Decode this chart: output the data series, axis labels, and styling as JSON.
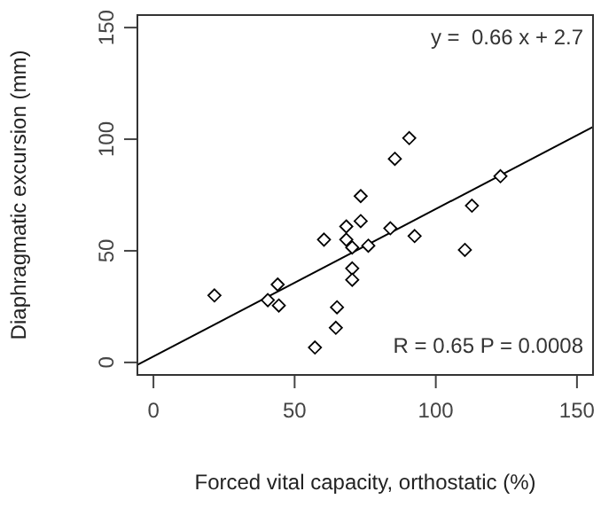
{
  "chart_data": {
    "type": "scatter",
    "xlabel": "Forced vital capacity, orthostatic (%)",
    "ylabel": "Diaphragmatic excursion (mm)",
    "xlim": [
      -6,
      156
    ],
    "ylim": [
      -6,
      156
    ],
    "xticks": [
      0,
      50,
      100,
      150
    ],
    "yticks": [
      0,
      50,
      100,
      150
    ],
    "grid": false,
    "legend": false,
    "series": [
      {
        "marker": "diamond",
        "color": "#000000",
        "x": [
          21.6,
          40.5,
          44.0,
          44.4,
          57.2,
          64.6,
          65.0,
          60.4,
          68.3,
          68.3,
          70.4,
          70.4,
          70.4,
          73.4,
          73.4,
          76.1,
          83.9,
          85.5,
          90.6,
          92.5,
          110.3,
          112.8,
          122.9
        ],
        "values": [
          30.0,
          27.9,
          34.9,
          25.5,
          6.7,
          15.5,
          24.7,
          55.0,
          60.9,
          55.0,
          51.5,
          42.1,
          37.0,
          74.5,
          63.3,
          52.3,
          60.1,
          91.2,
          100.5,
          56.6,
          50.4,
          70.2,
          83.4
        ]
      },
      {
        "type": "line",
        "color": "#000000",
        "line_style": "solid",
        "x": [
          -6,
          156
        ],
        "values": [
          -1.3,
          105.7
        ]
      }
    ],
    "annotations": [
      "y =  0.66 x + 2.7",
      "R = 0.65 P = 0.0008"
    ]
  }
}
